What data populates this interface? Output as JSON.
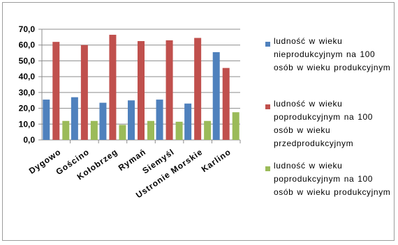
{
  "chart_data": {
    "type": "bar",
    "categories": [
      "Dygowo",
      "Gościno",
      "Kołobrzeg",
      "Rymań",
      "Siemyśl",
      "Ustronie Morskie",
      "Karlino"
    ],
    "ylim": [
      0,
      70
    ],
    "yticks": [
      "0,0",
      "10,0",
      "20,0",
      "30,0",
      "40,0",
      "50,0",
      "60,0",
      "70,0"
    ],
    "grid": true,
    "legend_position": "right",
    "series": [
      {
        "name": "ludność w wieku nieprodukcyjnym na 100 osób w wieku produkcyjnym",
        "color": "#4f81bd",
        "values": [
          25.5,
          27.0,
          23.5,
          25.0,
          25.5,
          23.0,
          55.5
        ]
      },
      {
        "name": "ludność w wieku poprodukcyjnym na 100 osób w wieku przedprodukcyjnym",
        "color": "#c0504d",
        "values": [
          62.0,
          60.0,
          66.5,
          62.5,
          63.0,
          64.5,
          45.5
        ]
      },
      {
        "name": "ludność w wieku poprodukcyjnym na 100 osób w wieku produkcyjnym",
        "color": "#9bbb59",
        "values": [
          12.0,
          12.0,
          9.5,
          12.0,
          11.5,
          12.0,
          17.5
        ]
      }
    ]
  }
}
